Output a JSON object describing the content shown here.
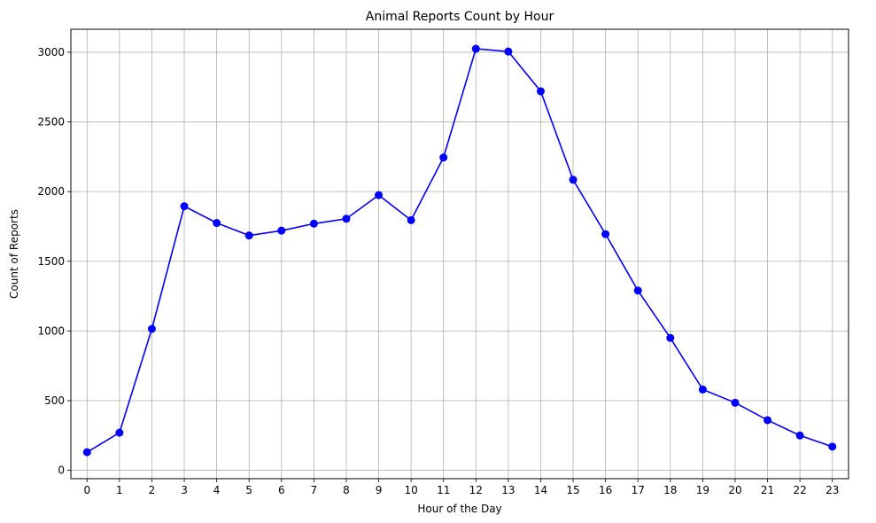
{
  "chart_data": {
    "type": "line",
    "title": "Animal Reports Count by Hour",
    "xlabel": "Hour of the Day",
    "ylabel": "Count of Reports",
    "x": [
      0,
      1,
      2,
      3,
      4,
      5,
      6,
      7,
      8,
      9,
      10,
      11,
      12,
      13,
      14,
      15,
      16,
      17,
      18,
      19,
      20,
      21,
      22,
      23
    ],
    "series": [
      {
        "values": [
          130,
          270,
          1015,
          1895,
          1775,
          1685,
          1720,
          1770,
          1805,
          1975,
          1795,
          2245,
          3025,
          3005,
          2720,
          2085,
          1695,
          1290,
          950,
          580,
          485,
          360,
          250,
          170
        ],
        "color": "#0000ff",
        "marker": "circle"
      }
    ],
    "xlim": [
      -0.5,
      23.5
    ],
    "ylim": [
      0,
      3100
    ],
    "yticks": [
      0,
      500,
      1000,
      1500,
      2000,
      2500,
      3000
    ],
    "grid": true,
    "grid_color": "#b0b0b0"
  }
}
